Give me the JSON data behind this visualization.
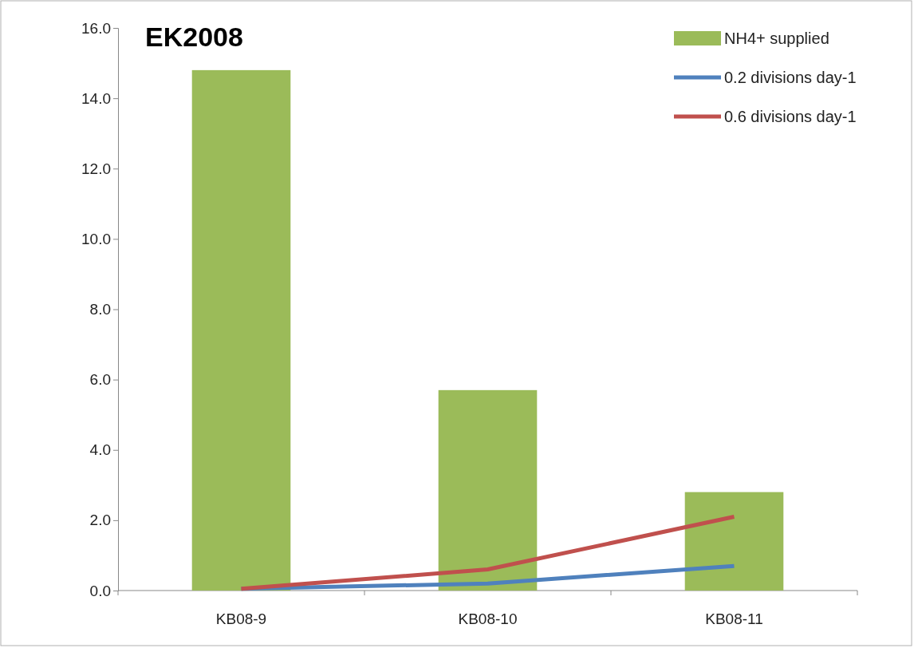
{
  "chart_data": {
    "type": "bar",
    "title": "EK2008",
    "categories": [
      "KB08-9",
      "KB08-10",
      "KB08-11"
    ],
    "series": [
      {
        "name": "NH4+ supplied",
        "color": "#9bbb59",
        "values": [
          14.8,
          5.7,
          2.8
        ]
      },
      {
        "name": "0.2 divisions day-1",
        "type": "line",
        "color": "#4f81bd",
        "values": [
          0.05,
          0.2,
          0.7
        ]
      },
      {
        "name": "0.6 divisions day-1",
        "type": "line",
        "color": "#c0504d",
        "values": [
          0.05,
          0.6,
          2.1
        ]
      }
    ],
    "ylim": [
      0,
      16
    ],
    "yticks": [
      {
        "value": 0,
        "label": "0.0"
      },
      {
        "value": 2,
        "label": "2.0"
      },
      {
        "value": 4,
        "label": "4.0"
      },
      {
        "value": 6,
        "label": "6.0"
      },
      {
        "value": 8,
        "label": "8.0"
      },
      {
        "value": 10,
        "label": "10.0"
      },
      {
        "value": 12,
        "label": "12.0"
      },
      {
        "value": 14,
        "label": "14.0"
      },
      {
        "value": 16,
        "label": "16.0"
      }
    ],
    "grid": false,
    "legend": "top right",
    "marker": "none"
  }
}
